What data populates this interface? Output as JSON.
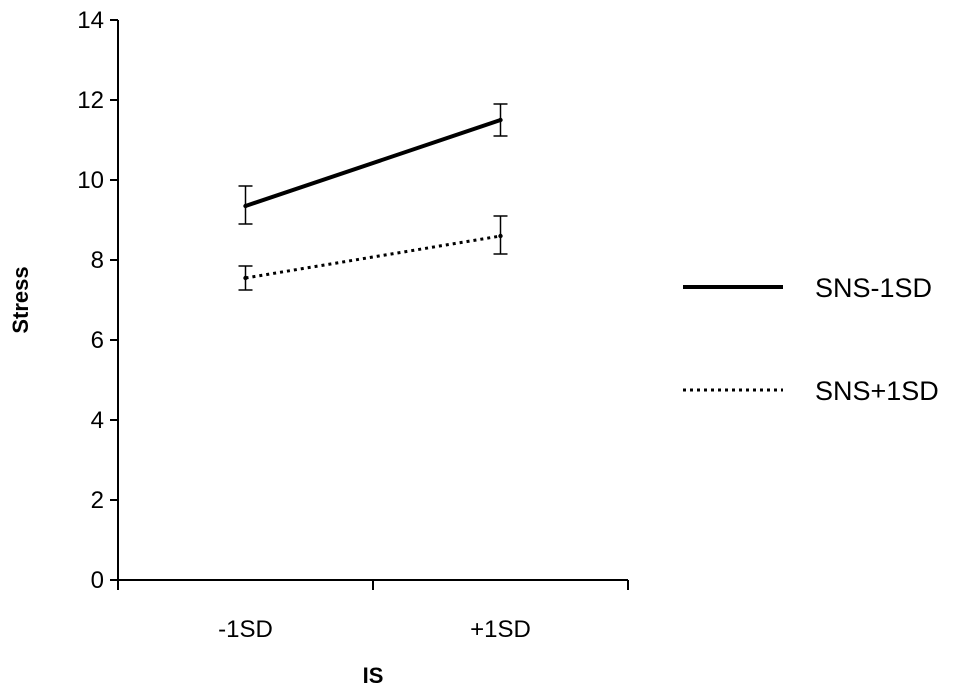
{
  "chart_data": {
    "type": "line",
    "title": "",
    "xlabel": "IS",
    "ylabel": "Stress",
    "categories": [
      "-1SD",
      "+1SD"
    ],
    "ylim": [
      0,
      14
    ],
    "yticks": [
      0,
      2,
      4,
      6,
      8,
      10,
      12,
      14
    ],
    "grid": false,
    "legend_position": "right",
    "series": [
      {
        "name": "SNS-1SD",
        "style": "solid",
        "color": "#000000",
        "values": [
          9.35,
          11.5
        ],
        "error_low": [
          8.9,
          11.1
        ],
        "error_high": [
          9.85,
          11.9
        ]
      },
      {
        "name": "SNS+1SD",
        "style": "dotted",
        "color": "#000000",
        "values": [
          7.55,
          8.6
        ],
        "error_low": [
          7.25,
          8.15
        ],
        "error_high": [
          7.85,
          9.1
        ]
      }
    ]
  }
}
